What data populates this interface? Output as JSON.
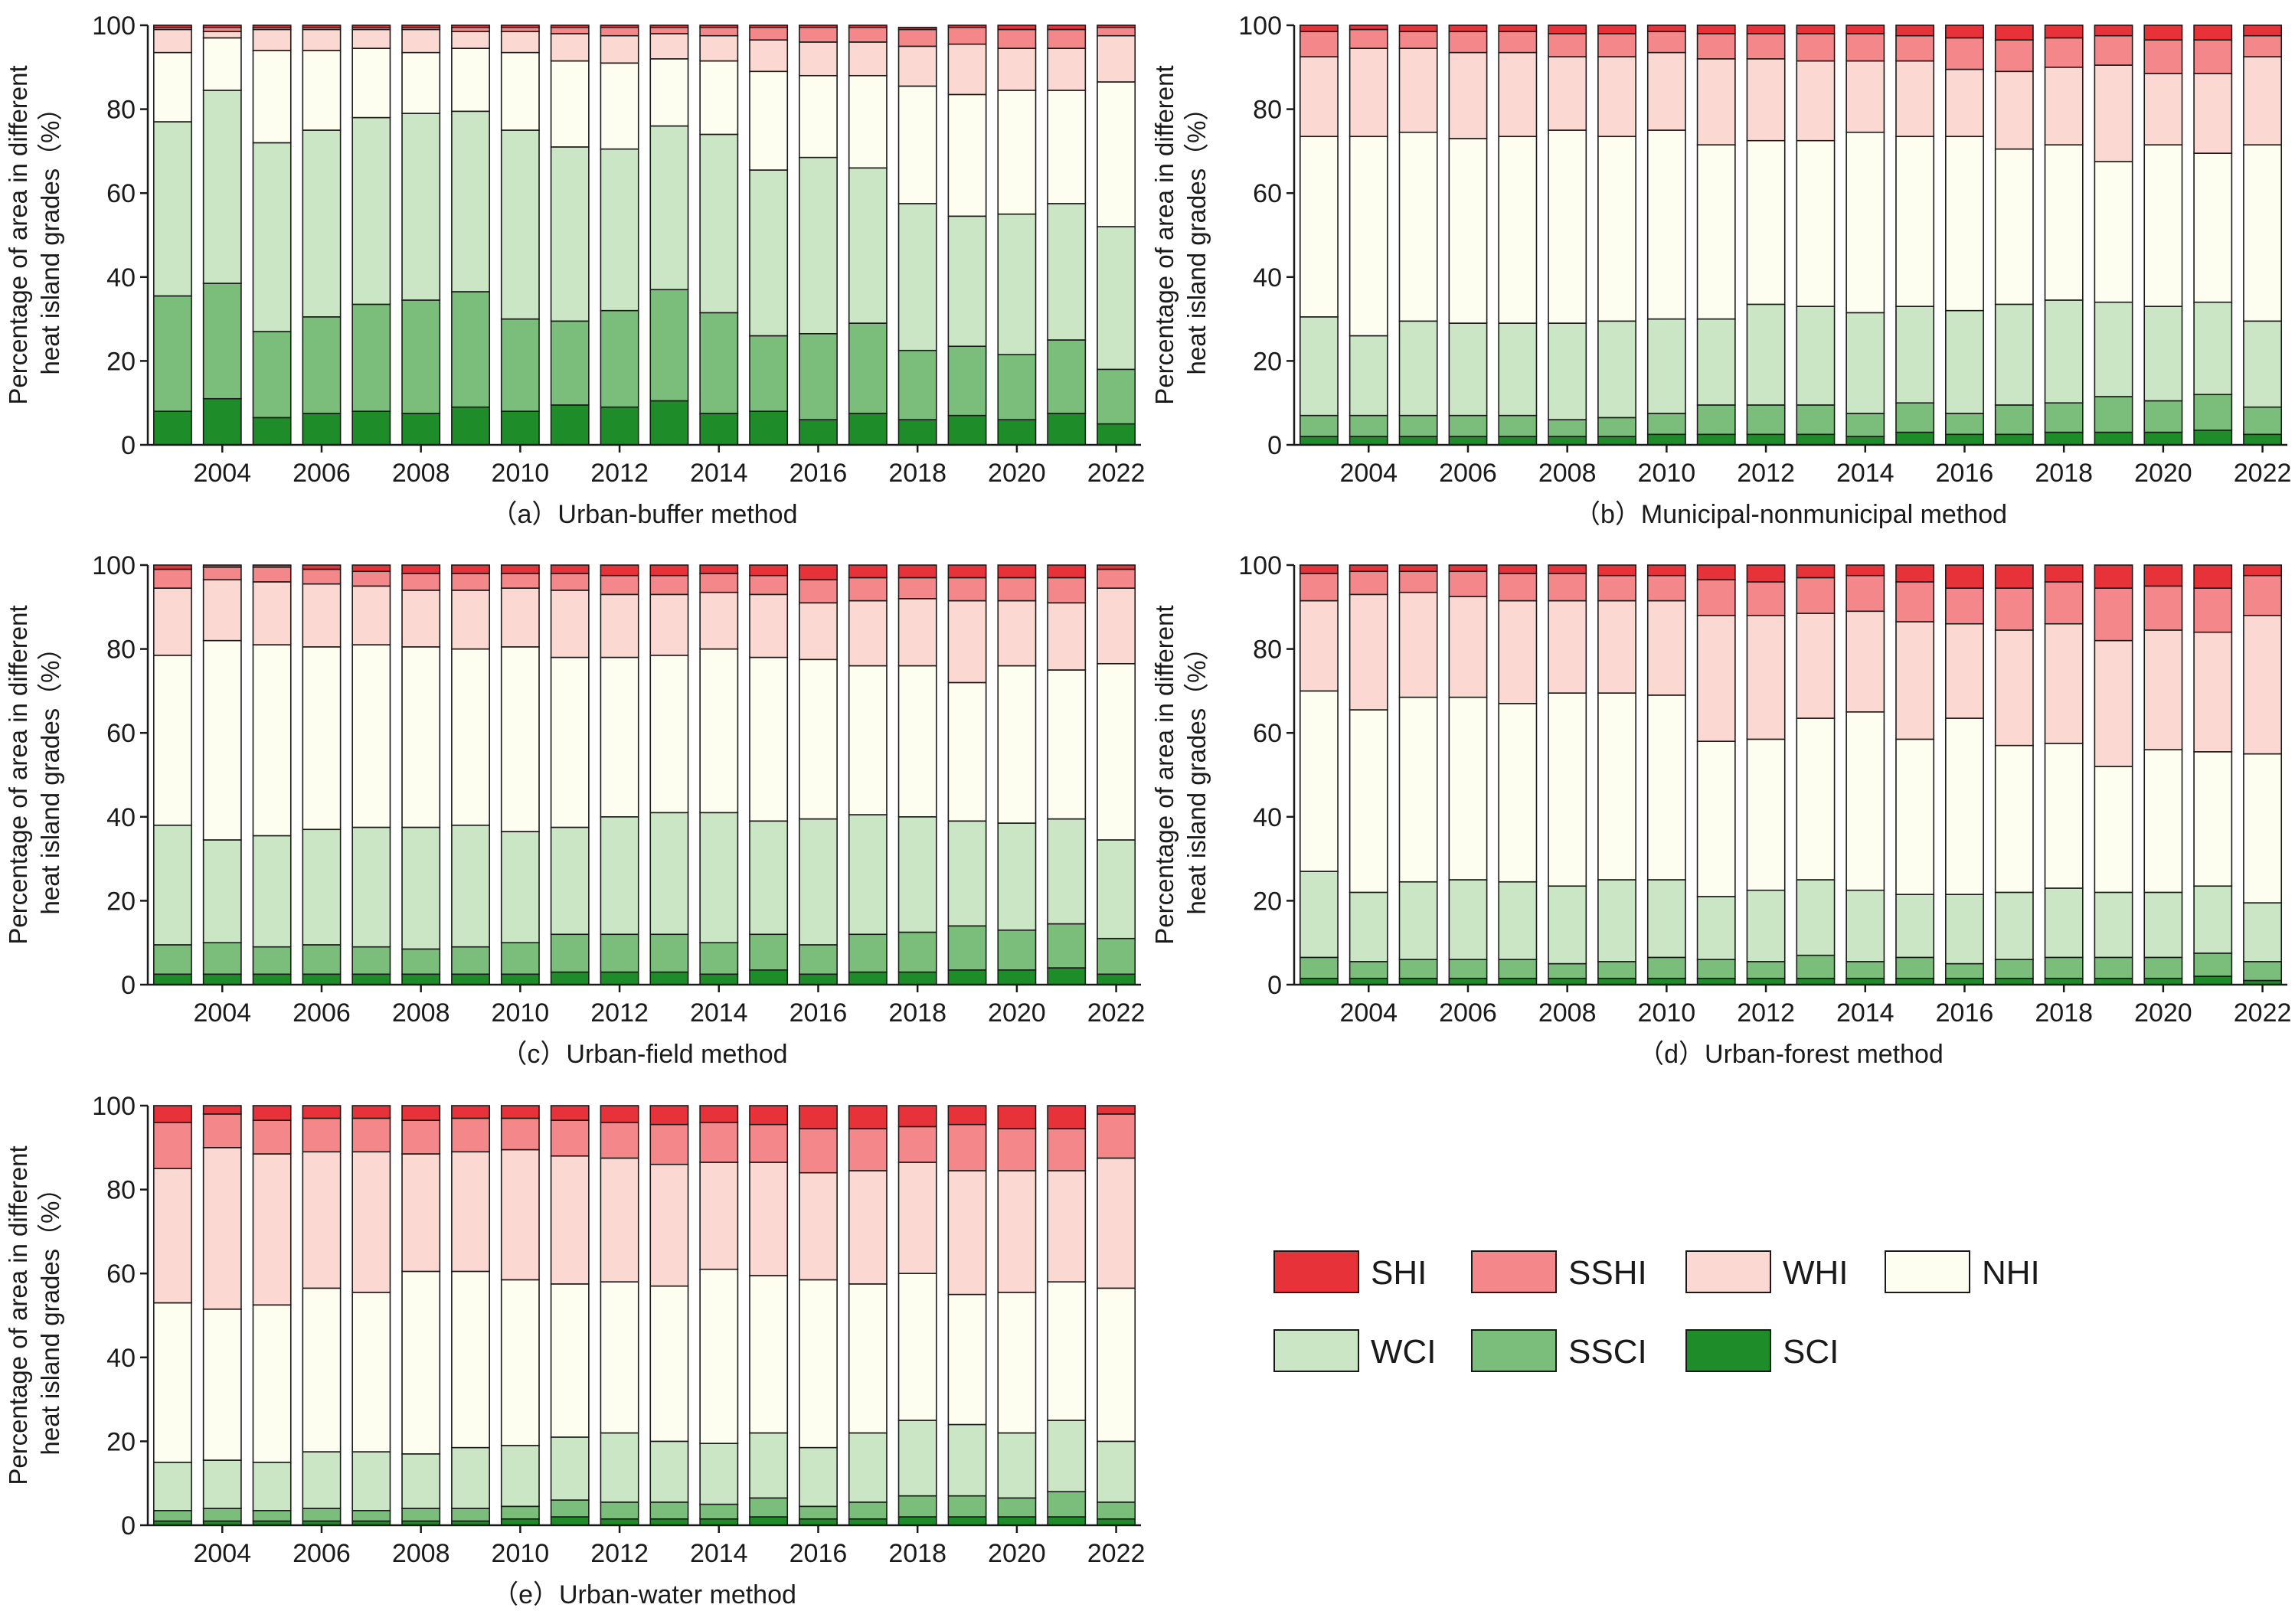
{
  "colors": {
    "SHI": "#e8323a",
    "SSHI": "#f4878a",
    "WHI": "#fbd9d2",
    "NHI": "#fdfdf0",
    "WCI": "#cbe6c5",
    "SSCI": "#7bbd7a",
    "SCI": "#1f8c2a"
  },
  "legend": {
    "items": [
      {
        "key": "SHI",
        "label": "SHI"
      },
      {
        "key": "SSHI",
        "label": "SSHI"
      },
      {
        "key": "WHI",
        "label": "WHI"
      },
      {
        "key": "NHI",
        "label": "NHI"
      },
      {
        "key": "WCI",
        "label": "WCI"
      },
      {
        "key": "SSCI",
        "label": "SSCI"
      },
      {
        "key": "SCI",
        "label": "SCI"
      }
    ]
  },
  "chart_data": [
    {
      "type": "bar",
      "stacked": true,
      "title": "（a）Urban-buffer method",
      "ylabel_lines": [
        "Percentage of area in different",
        "heat island grades（%）"
      ],
      "ylim": [
        0,
        100
      ],
      "yticks": [
        "0",
        "20",
        "40",
        "60",
        "80",
        "100"
      ],
      "xtick_labels": [
        "2004",
        "2006",
        "2008",
        "2010",
        "2012",
        "2014",
        "2016",
        "2018",
        "2020",
        "2022"
      ],
      "categories": [
        2003,
        2004,
        2005,
        2006,
        2007,
        2008,
        2009,
        2010,
        2011,
        2012,
        2013,
        2014,
        2015,
        2016,
        2017,
        2018,
        2019,
        2020,
        2021,
        2022
      ],
      "series": [
        {
          "key": "SCI",
          "values": [
            8,
            11,
            6.5,
            7.5,
            8,
            7.5,
            9,
            8,
            9.5,
            9,
            10.5,
            7.5,
            8,
            6,
            7.5,
            6,
            7,
            6,
            7.5,
            5
          ]
        },
        {
          "key": "SSCI",
          "values": [
            27.5,
            27.5,
            20.5,
            23,
            25.5,
            27,
            27.5,
            22,
            20,
            23,
            26.5,
            24,
            18,
            20.5,
            21.5,
            16.5,
            16.5,
            15.5,
            17.5,
            13
          ]
        },
        {
          "key": "WCI",
          "values": [
            41.5,
            46,
            45,
            44.5,
            44.5,
            44.5,
            43,
            45,
            41.5,
            38.5,
            39,
            42.5,
            39.5,
            42,
            37,
            35,
            31,
            33.5,
            32.5,
            34
          ]
        },
        {
          "key": "NHI",
          "values": [
            16.5,
            12.5,
            22,
            19,
            16.5,
            14.5,
            15,
            18.5,
            20.5,
            20.5,
            16,
            17.5,
            23.5,
            19.5,
            22,
            28,
            29,
            29.5,
            27,
            34.5
          ]
        },
        {
          "key": "WHI",
          "values": [
            5.5,
            1.5,
            5,
            5,
            4.5,
            5.5,
            4,
            5,
            6.5,
            6.5,
            6,
            6,
            7.5,
            8,
            8,
            9.5,
            12,
            10,
            10,
            11
          ]
        },
        {
          "key": "SSHI",
          "values": [
            0.5,
            1,
            0.5,
            0.5,
            0.5,
            0.5,
            1,
            1,
            1.5,
            2,
            1.5,
            2,
            3,
            3.5,
            3.5,
            4,
            4,
            4.5,
            4.5,
            2
          ]
        },
        {
          "key": "SHI",
          "values": [
            0.5,
            0.5,
            0.5,
            0.5,
            0.5,
            0.5,
            0.5,
            0.5,
            0.5,
            0.5,
            0.5,
            0.5,
            0.5,
            0.5,
            0.5,
            0.5,
            0.5,
            1,
            1,
            0.5
          ]
        }
      ]
    },
    {
      "type": "bar",
      "stacked": true,
      "title": "（b）Municipal-nonmunicipal method",
      "ylabel_lines": [
        "Percentage of area in different",
        "heat island grades（%）"
      ],
      "ylim": [
        0,
        100
      ],
      "yticks": [
        "0",
        "20",
        "40",
        "60",
        "80",
        "100"
      ],
      "xtick_labels": [
        "2004",
        "2006",
        "2008",
        "2010",
        "2012",
        "2014",
        "2016",
        "2018",
        "2020",
        "2022"
      ],
      "categories": [
        2003,
        2004,
        2005,
        2006,
        2007,
        2008,
        2009,
        2010,
        2011,
        2012,
        2013,
        2014,
        2015,
        2016,
        2017,
        2018,
        2019,
        2020,
        2021,
        2022
      ],
      "series": [
        {
          "key": "SCI",
          "values": [
            2,
            2,
            2,
            2,
            2,
            2,
            2,
            2.5,
            2.5,
            2.5,
            2.5,
            2,
            3,
            2.5,
            2.5,
            3,
            3,
            3,
            3.5,
            2.5
          ]
        },
        {
          "key": "SSCI",
          "values": [
            5,
            5,
            5,
            5,
            5,
            4,
            4.5,
            5,
            7,
            7,
            7,
            5.5,
            7,
            5,
            7,
            7,
            8.5,
            7.5,
            8.5,
            6.5
          ]
        },
        {
          "key": "WCI",
          "values": [
            23.5,
            19,
            22.5,
            22,
            22,
            23,
            23,
            22.5,
            20.5,
            24,
            23.5,
            24,
            23,
            24.5,
            24,
            24.5,
            22.5,
            22.5,
            22,
            20.5
          ]
        },
        {
          "key": "NHI",
          "values": [
            43,
            47.5,
            45,
            44,
            44.5,
            46,
            44,
            45,
            41.5,
            39,
            39.5,
            43,
            40.5,
            41.5,
            37,
            37,
            33.5,
            38.5,
            35.5,
            42
          ]
        },
        {
          "key": "WHI",
          "values": [
            19,
            21,
            20,
            20.5,
            20,
            17.5,
            19,
            18.5,
            20.5,
            19.5,
            19,
            17,
            18,
            16,
            18.5,
            18.5,
            23,
            17,
            19,
            21
          ]
        },
        {
          "key": "SSHI",
          "values": [
            6,
            4.5,
            4,
            5,
            5,
            5.5,
            5.5,
            5,
            6,
            6,
            6.5,
            6.5,
            6,
            7.5,
            7.5,
            7,
            7,
            8,
            8,
            5
          ]
        },
        {
          "key": "SHI",
          "values": [
            1.5,
            1,
            1.5,
            1.5,
            1.5,
            2,
            2,
            1.5,
            2,
            2,
            2,
            2,
            2.5,
            3,
            3.5,
            3,
            2.5,
            3.5,
            3.5,
            2.5
          ]
        }
      ]
    },
    {
      "type": "bar",
      "stacked": true,
      "title": "（c）Urban-field method",
      "ylabel_lines": [
        "Percentage of area in different",
        "heat island grades（%）"
      ],
      "ylim": [
        0,
        100
      ],
      "yticks": [
        "0",
        "20",
        "40",
        "60",
        "80",
        "100"
      ],
      "xtick_labels": [
        "2004",
        "2006",
        "2008",
        "2010",
        "2012",
        "2014",
        "2016",
        "2018",
        "2020",
        "2022"
      ],
      "categories": [
        2003,
        2004,
        2005,
        2006,
        2007,
        2008,
        2009,
        2010,
        2011,
        2012,
        2013,
        2014,
        2015,
        2016,
        2017,
        2018,
        2019,
        2020,
        2021,
        2022
      ],
      "series": [
        {
          "key": "SCI",
          "values": [
            2.5,
            2.5,
            2.5,
            2.5,
            2.5,
            2.5,
            2.5,
            2.5,
            3,
            3,
            3,
            2.5,
            3.5,
            2.5,
            3,
            3,
            3.5,
            3.5,
            4,
            2.5
          ]
        },
        {
          "key": "SSCI",
          "values": [
            7,
            7.5,
            6.5,
            7,
            6.5,
            6,
            6.5,
            7.5,
            9,
            9,
            9,
            7.5,
            8.5,
            7,
            9,
            9.5,
            10.5,
            9.5,
            10.5,
            8.5
          ]
        },
        {
          "key": "WCI",
          "values": [
            28.5,
            24.5,
            26.5,
            27.5,
            28.5,
            29,
            29,
            26.5,
            25.5,
            28,
            29,
            31,
            27,
            30,
            28.5,
            27.5,
            25,
            25.5,
            25,
            23.5
          ]
        },
        {
          "key": "NHI",
          "values": [
            40.5,
            47.5,
            45.5,
            43.5,
            43.5,
            43,
            42,
            44,
            40.5,
            38,
            37.5,
            39,
            39,
            38,
            35.5,
            36,
            33,
            37.5,
            35.5,
            42
          ]
        },
        {
          "key": "WHI",
          "values": [
            16,
            14.5,
            15,
            15,
            14,
            13.5,
            14,
            14,
            16,
            15,
            14.5,
            13.5,
            15,
            13.5,
            15.5,
            16,
            19.5,
            15.5,
            16,
            18
          ]
        },
        {
          "key": "SSHI",
          "values": [
            4.5,
            3,
            3.5,
            3.5,
            3.5,
            4,
            4,
            3.5,
            4,
            4.5,
            4.5,
            4.5,
            4.5,
            5.5,
            5.5,
            5,
            5.5,
            5.5,
            6,
            4.5
          ]
        },
        {
          "key": "SHI",
          "values": [
            1,
            0.5,
            0.5,
            1,
            1.5,
            2,
            2,
            2,
            2,
            2.5,
            2.5,
            2,
            2.5,
            3.5,
            3,
            3,
            3,
            3,
            3,
            1
          ]
        }
      ]
    },
    {
      "type": "bar",
      "stacked": true,
      "title": "（d）Urban-forest method",
      "ylabel_lines": [
        "Percentage of area in different",
        "heat island grades（%）"
      ],
      "ylim": [
        0,
        100
      ],
      "yticks": [
        "0",
        "20",
        "40",
        "60",
        "80",
        "100"
      ],
      "xtick_labels": [
        "2004",
        "2006",
        "2008",
        "2010",
        "2012",
        "2014",
        "2016",
        "2018",
        "2020",
        "2022"
      ],
      "categories": [
        2003,
        2004,
        2005,
        2006,
        2007,
        2008,
        2009,
        2010,
        2011,
        2012,
        2013,
        2014,
        2015,
        2016,
        2017,
        2018,
        2019,
        2020,
        2021,
        2022
      ],
      "series": [
        {
          "key": "SCI",
          "values": [
            1.5,
            1.5,
            1.5,
            1.5,
            1.5,
            1.5,
            1.5,
            1.5,
            1.5,
            1.5,
            1.5,
            1.5,
            1.5,
            1.5,
            1.5,
            1.5,
            1.5,
            1.5,
            2,
            1
          ]
        },
        {
          "key": "SSCI",
          "values": [
            5,
            4,
            4.5,
            4.5,
            4.5,
            3.5,
            4,
            5,
            4.5,
            4,
            5.5,
            4,
            5,
            3.5,
            4.5,
            5,
            5,
            5,
            5.5,
            4.5
          ]
        },
        {
          "key": "WCI",
          "values": [
            20.5,
            16.5,
            18.5,
            19,
            18.5,
            18.5,
            19.5,
            18.5,
            15,
            17,
            18,
            17,
            15,
            16.5,
            16,
            16.5,
            15.5,
            15.5,
            16,
            14
          ]
        },
        {
          "key": "NHI",
          "values": [
            43,
            43.5,
            44,
            43.5,
            42.5,
            46,
            44.5,
            44,
            37,
            36,
            38.5,
            42.5,
            37,
            42,
            35,
            34.5,
            30,
            34,
            32,
            35.5
          ]
        },
        {
          "key": "WHI",
          "values": [
            21.5,
            27.5,
            25,
            24,
            24.5,
            22,
            22,
            22.5,
            30,
            29.5,
            25,
            24,
            28,
            22.5,
            27.5,
            28.5,
            30,
            28.5,
            28.5,
            33
          ]
        },
        {
          "key": "SSHI",
          "values": [
            6.5,
            5.5,
            5,
            6,
            6.5,
            6.5,
            6,
            6,
            8.5,
            8,
            8.5,
            8.5,
            9.5,
            8.5,
            10,
            10,
            12.5,
            10.5,
            10.5,
            9.5
          ]
        },
        {
          "key": "SHI",
          "values": [
            2,
            1.5,
            1.5,
            1.5,
            2,
            2,
            2.5,
            2.5,
            3.5,
            4,
            3,
            2.5,
            4,
            5.5,
            5.5,
            4,
            5.5,
            5,
            5.5,
            2.5
          ]
        }
      ]
    },
    {
      "type": "bar",
      "stacked": true,
      "title": "（e）Urban-water method",
      "ylabel_lines": [
        "Percentage of area in different",
        "heat island grades（%）"
      ],
      "ylim": [
        0,
        100
      ],
      "yticks": [
        "0",
        "20",
        "40",
        "60",
        "80",
        "100"
      ],
      "xtick_labels": [
        "2004",
        "2006",
        "2008",
        "2010",
        "2012",
        "2014",
        "2016",
        "2018",
        "2020",
        "2022"
      ],
      "categories": [
        2003,
        2004,
        2005,
        2006,
        2007,
        2008,
        2009,
        2010,
        2011,
        2012,
        2013,
        2014,
        2015,
        2016,
        2017,
        2018,
        2019,
        2020,
        2021,
        2022
      ],
      "series": [
        {
          "key": "SCI",
          "values": [
            1,
            1,
            1,
            1,
            1,
            1,
            1,
            1.5,
            2,
            1.5,
            1.5,
            1.5,
            2,
            1.5,
            1.5,
            2,
            2,
            2,
            2,
            1.5
          ]
        },
        {
          "key": "SSCI",
          "values": [
            2.5,
            3,
            2.5,
            3,
            2.5,
            3,
            3,
            3,
            4,
            4,
            4,
            3.5,
            4.5,
            3,
            4,
            5,
            5,
            4.5,
            6,
            4
          ]
        },
        {
          "key": "WCI",
          "values": [
            11.5,
            11.5,
            11.5,
            13.5,
            14,
            13,
            14.5,
            14.5,
            15,
            16.5,
            14.5,
            14.5,
            15.5,
            14,
            16.5,
            18,
            17,
            15.5,
            17,
            14.5
          ]
        },
        {
          "key": "NHI",
          "values": [
            38,
            36,
            37.5,
            39,
            38,
            43.5,
            42,
            39.5,
            36.5,
            36,
            37,
            41.5,
            37.5,
            40,
            35.5,
            35,
            31,
            33.5,
            33,
            36.5
          ]
        },
        {
          "key": "WHI",
          "values": [
            32,
            38.5,
            36,
            32.5,
            33.5,
            28,
            28.5,
            31,
            30.5,
            29.5,
            29,
            25.5,
            27,
            25.5,
            27,
            26.5,
            29.5,
            29,
            26.5,
            31
          ]
        },
        {
          "key": "SSHI",
          "values": [
            11,
            8,
            8,
            8,
            8,
            8,
            8,
            7.5,
            8.5,
            8.5,
            9.5,
            9.5,
            9,
            10.5,
            10,
            8.5,
            11,
            10,
            10,
            10.5
          ]
        },
        {
          "key": "SHI",
          "values": [
            4,
            2,
            3.5,
            3,
            3,
            3.5,
            3,
            3,
            3.5,
            4,
            4.5,
            4,
            4.5,
            5.5,
            5.5,
            5,
            4.5,
            5.5,
            5.5,
            2
          ]
        }
      ]
    }
  ]
}
